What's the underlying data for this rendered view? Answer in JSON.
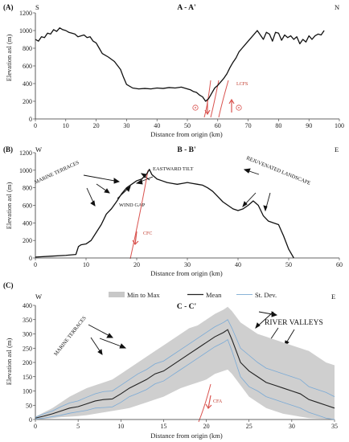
{
  "chart_data": [
    {
      "type": "line",
      "panel_label": "(A)",
      "title": "A - A'",
      "corner_left": "S",
      "corner_right": "N",
      "xlabel": "Distance from origin (km)",
      "ylabel": "Elevation asl (m)",
      "xlim": [
        0,
        100
      ],
      "ylim": [
        0,
        1200
      ],
      "xticks": [
        0,
        10,
        20,
        30,
        40,
        50,
        60,
        70,
        80,
        90,
        100
      ],
      "yticks": [
        0,
        200,
        400,
        600,
        800,
        1000,
        1200
      ],
      "series": [
        {
          "x": [
            0,
            1,
            2,
            3,
            4,
            5,
            6,
            7,
            8,
            9,
            10,
            11,
            12,
            13,
            14,
            15,
            16,
            17,
            18,
            19,
            20,
            21,
            22,
            24,
            26,
            28,
            29,
            30,
            32,
            34,
            36,
            38,
            40,
            42,
            44,
            46,
            48,
            50,
            51,
            52,
            53,
            54,
            55,
            56,
            57,
            58,
            59,
            60,
            61,
            62,
            63,
            64,
            65,
            66,
            67,
            68,
            69,
            70,
            71,
            72,
            73,
            74,
            75,
            76,
            77,
            78,
            79,
            80,
            81,
            82,
            83,
            84,
            85,
            86,
            87,
            88,
            89,
            90,
            91,
            92,
            93,
            94,
            95
          ],
          "y": [
            900,
            880,
            930,
            920,
            970,
            960,
            1010,
            990,
            1030,
            1010,
            1000,
            980,
            970,
            960,
            930,
            940,
            950,
            920,
            930,
            880,
            860,
            800,
            740,
            700,
            650,
            560,
            470,
            390,
            350,
            340,
            345,
            340,
            350,
            345,
            355,
            350,
            360,
            340,
            330,
            310,
            300,
            270,
            250,
            200,
            230,
            290,
            350,
            380,
            420,
            460,
            510,
            580,
            640,
            690,
            760,
            800,
            840,
            880,
            920,
            960,
            1000,
            950,
            900,
            980,
            960,
            880,
            980,
            970,
            890,
            950,
            920,
            940,
            900,
            930,
            850,
            900,
            870,
            940,
            900,
            940,
            960,
            950,
            1000
          ]
        }
      ],
      "fault_label": "LCFS"
    },
    {
      "type": "line",
      "panel_label": "(B)",
      "title": "B - B'",
      "corner_left": "W",
      "corner_right": "E",
      "xlabel": "Distance from origin (km)",
      "ylabel": "Elevation asl (m)",
      "xlim": [
        0,
        60
      ],
      "ylim": [
        0,
        1200
      ],
      "xticks": [
        0,
        10,
        20,
        30,
        40,
        50,
        60
      ],
      "yticks": [
        0,
        200,
        400,
        600,
        800,
        1000,
        1200
      ],
      "series": [
        {
          "x": [
            0,
            3,
            6,
            8,
            8.5,
            9,
            10,
            11,
            12,
            13,
            14,
            15,
            16,
            17,
            18,
            19,
            20,
            21,
            22,
            22.5,
            23,
            24,
            25,
            26,
            27,
            28,
            29,
            30,
            31,
            32,
            33,
            34,
            35,
            36,
            37,
            38,
            39,
            40,
            41,
            42,
            43,
            44,
            45,
            46,
            47,
            48,
            49,
            50,
            51
          ],
          "y": [
            10,
            20,
            30,
            40,
            130,
            150,
            160,
            200,
            290,
            380,
            500,
            560,
            640,
            730,
            800,
            840,
            880,
            900,
            960,
            1010,
            950,
            900,
            880,
            860,
            850,
            840,
            850,
            860,
            850,
            840,
            830,
            800,
            760,
            700,
            640,
            600,
            560,
            540,
            560,
            600,
            650,
            600,
            480,
            420,
            400,
            380,
            250,
            100,
            0
          ]
        }
      ],
      "annotations": [
        "MARINE TERRACES",
        "EASTWARD TILT",
        "REJUVENATED LANDSCAPE",
        "WIND GAP"
      ],
      "fault_label": "CFC"
    },
    {
      "type": "area",
      "panel_label": "(C)",
      "title": "C - C'",
      "corner_left": "W",
      "corner_right": "E",
      "xlabel": "Distance from origin (km)",
      "ylabel": "Elevation asl (m)",
      "xlim": [
        0,
        35
      ],
      "ylim": [
        0,
        400
      ],
      "xticks": [
        0,
        5,
        10,
        15,
        20,
        25,
        30,
        35
      ],
      "yticks": [
        0,
        50,
        100,
        150,
        200,
        250,
        300,
        350,
        400
      ],
      "legend": [
        "Min to Max",
        "Mean",
        "St. Dev."
      ],
      "legend_position": "top",
      "x": [
        0,
        1,
        2,
        3,
        4,
        5,
        6,
        7,
        8,
        9,
        10,
        11,
        12,
        13,
        14,
        15,
        16,
        17,
        18,
        19,
        20,
        21,
        22,
        22.5,
        23,
        24,
        25,
        26,
        27,
        28,
        29,
        30,
        31,
        32,
        33,
        34,
        35
      ],
      "series": [
        {
          "name": "Min to Max",
          "role": "max",
          "values": [
            10,
            25,
            40,
            60,
            80,
            95,
            110,
            120,
            130,
            140,
            160,
            180,
            200,
            220,
            240,
            260,
            280,
            300,
            320,
            330,
            350,
            370,
            385,
            395,
            380,
            340,
            320,
            300,
            290,
            280,
            270,
            260,
            250,
            240,
            220,
            200,
            190
          ]
        },
        {
          "name": "Min to Max",
          "role": "min",
          "values": [
            0,
            2,
            5,
            8,
            10,
            12,
            15,
            20,
            25,
            30,
            35,
            40,
            50,
            60,
            70,
            80,
            95,
            110,
            120,
            130,
            140,
            160,
            170,
            175,
            160,
            120,
            80,
            60,
            40,
            30,
            20,
            15,
            10,
            5,
            3,
            2,
            0
          ]
        },
        {
          "name": "Mean",
          "values": [
            5,
            12,
            20,
            30,
            40,
            45,
            55,
            65,
            70,
            72,
            90,
            110,
            125,
            140,
            160,
            170,
            190,
            210,
            230,
            250,
            270,
            290,
            305,
            315,
            280,
            200,
            170,
            150,
            130,
            120,
            110,
            100,
            90,
            70,
            60,
            50,
            40
          ]
        },
        {
          "name": "St. Dev.",
          "role": "upper",
          "values": [
            8,
            20,
            30,
            45,
            58,
            65,
            78,
            90,
            98,
            100,
            120,
            140,
            160,
            175,
            195,
            205,
            225,
            245,
            265,
            285,
            305,
            325,
            340,
            350,
            320,
            250,
            225,
            200,
            180,
            170,
            160,
            150,
            140,
            115,
            105,
            95,
            80
          ]
        },
        {
          "name": "St. Dev.",
          "role": "lower",
          "values": [
            2,
            5,
            10,
            15,
            22,
            27,
            32,
            40,
            42,
            44,
            60,
            80,
            92,
            105,
            125,
            135,
            155,
            175,
            195,
            215,
            235,
            255,
            270,
            280,
            240,
            150,
            115,
            100,
            80,
            70,
            60,
            50,
            40,
            25,
            15,
            5,
            0
          ]
        }
      ],
      "annotations": [
        "MARINE TERRACES",
        "RIVER VALLEYS"
      ],
      "fault_label": "CFA"
    }
  ]
}
